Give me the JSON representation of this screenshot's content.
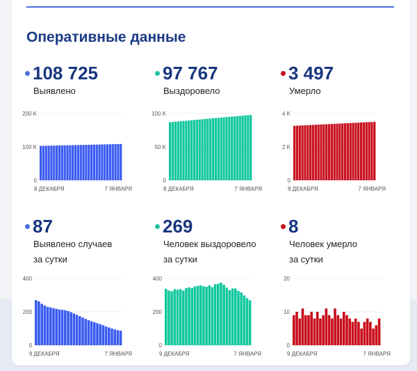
{
  "header": {
    "title": "Оперативные данные"
  },
  "colors": {
    "cases": "#3b5cf0",
    "recovered": "#12c79e",
    "deaths": "#c80f1c"
  },
  "stats": [
    {
      "value": "108 725",
      "label": "Выявлено",
      "label2": "",
      "color": "#4a6fdc"
    },
    {
      "value": "97 767",
      "label": "Выздоровело",
      "label2": "",
      "color": "#22c2a0"
    },
    {
      "value": "3 497",
      "label": "Умерло",
      "label2": "",
      "color": "#c80f1c"
    },
    {
      "value": "87",
      "label": "Выявлено случаев",
      "label2": "за сутки",
      "color": "#4a6fdc"
    },
    {
      "value": "269",
      "label": "Человек выздоровело",
      "label2": "за сутки",
      "color": "#22c2a0"
    },
    {
      "value": "8",
      "label": "Человек умерло",
      "label2": "за сутки",
      "color": "#c80f1c"
    }
  ],
  "chart_data": [
    {
      "type": "bar",
      "color": "#3b5cf0",
      "ylim": [
        0,
        200000
      ],
      "yticks": [
        "0",
        "100 K",
        "200 K"
      ],
      "xlabels": [
        "8 ДЕКАБРЯ",
        "7 ЯНВАРЯ"
      ],
      "grid": true,
      "values": [
        102900,
        103090,
        103280,
        103470,
        103660,
        103850,
        104040,
        104230,
        104420,
        104610,
        104800,
        104990,
        105180,
        105370,
        105560,
        105750,
        105940,
        106130,
        106320,
        106510,
        106700,
        106890,
        107080,
        107270,
        107460,
        107650,
        107840,
        108030,
        108220,
        108450,
        108725
      ]
    },
    {
      "type": "bar",
      "color": "#12c79e",
      "ylim": [
        0,
        100000
      ],
      "yticks": [
        "0",
        "50 K",
        "100 K"
      ],
      "xlabels": [
        "8 ДЕКАБРЯ",
        "7 ЯНВАРЯ"
      ],
      "grid": true,
      "values": [
        87000,
        87360,
        87720,
        88080,
        88440,
        88800,
        89160,
        89520,
        89880,
        90240,
        90600,
        90960,
        91320,
        91680,
        92040,
        92400,
        92760,
        93120,
        93480,
        93840,
        94200,
        94560,
        94920,
        95280,
        95640,
        96000,
        96360,
        96720,
        97080,
        97420,
        97767
      ]
    },
    {
      "type": "bar",
      "color": "#c80f1c",
      "ylim": [
        0,
        4000
      ],
      "yticks": [
        "0",
        "2 K",
        "4 K"
      ],
      "xlabels": [
        "8 ДЕКАБРЯ",
        "7 ЯНВАРЯ"
      ],
      "grid": true,
      "values": [
        3260,
        3268,
        3276,
        3284,
        3292,
        3300,
        3308,
        3316,
        3324,
        3332,
        3340,
        3348,
        3356,
        3364,
        3372,
        3380,
        3388,
        3396,
        3404,
        3412,
        3420,
        3428,
        3436,
        3444,
        3452,
        3460,
        3468,
        3476,
        3484,
        3490,
        3497
      ]
    },
    {
      "type": "bar",
      "color": "#3b5cf0",
      "ylim": [
        0,
        400
      ],
      "yticks": [
        "0",
        "200",
        "400"
      ],
      "xlabels": [
        "9 ДЕКАБРЯ",
        "7 ЯНВАРЯ"
      ],
      "grid": true,
      "values": [
        270,
        262,
        248,
        238,
        230,
        226,
        222,
        218,
        214,
        212,
        210,
        205,
        198,
        190,
        182,
        174,
        166,
        158,
        150,
        144,
        138,
        132,
        126,
        120,
        112,
        106,
        100,
        95,
        90,
        87
      ]
    },
    {
      "type": "bar",
      "color": "#12c79e",
      "ylim": [
        0,
        400
      ],
      "yticks": [
        "0",
        "200",
        "400"
      ],
      "xlabels": [
        "9 ДЕКАБРЯ",
        "7 ЯНВАРЯ"
      ],
      "grid": true,
      "values": [
        338,
        327,
        323,
        335,
        332,
        336,
        327,
        342,
        347,
        342,
        352,
        355,
        358,
        353,
        350,
        358,
        348,
        365,
        368,
        375,
        362,
        345,
        330,
        340,
        340,
        325,
        316,
        298,
        282,
        269
      ]
    },
    {
      "type": "bar",
      "color": "#c80f1c",
      "ylim": [
        0,
        20
      ],
      "yticks": [
        "0",
        "10",
        "20"
      ],
      "xlabels": [
        "9 ДЕКАБРЯ",
        "7 ЯНВАРЯ"
      ],
      "grid": true,
      "values": [
        9,
        10,
        8,
        11,
        9,
        9,
        10,
        8,
        10,
        8,
        9,
        11,
        9,
        8,
        11,
        9,
        8,
        10,
        9,
        8,
        7,
        8,
        7,
        5,
        7,
        8,
        7,
        5,
        6,
        8
      ]
    }
  ]
}
